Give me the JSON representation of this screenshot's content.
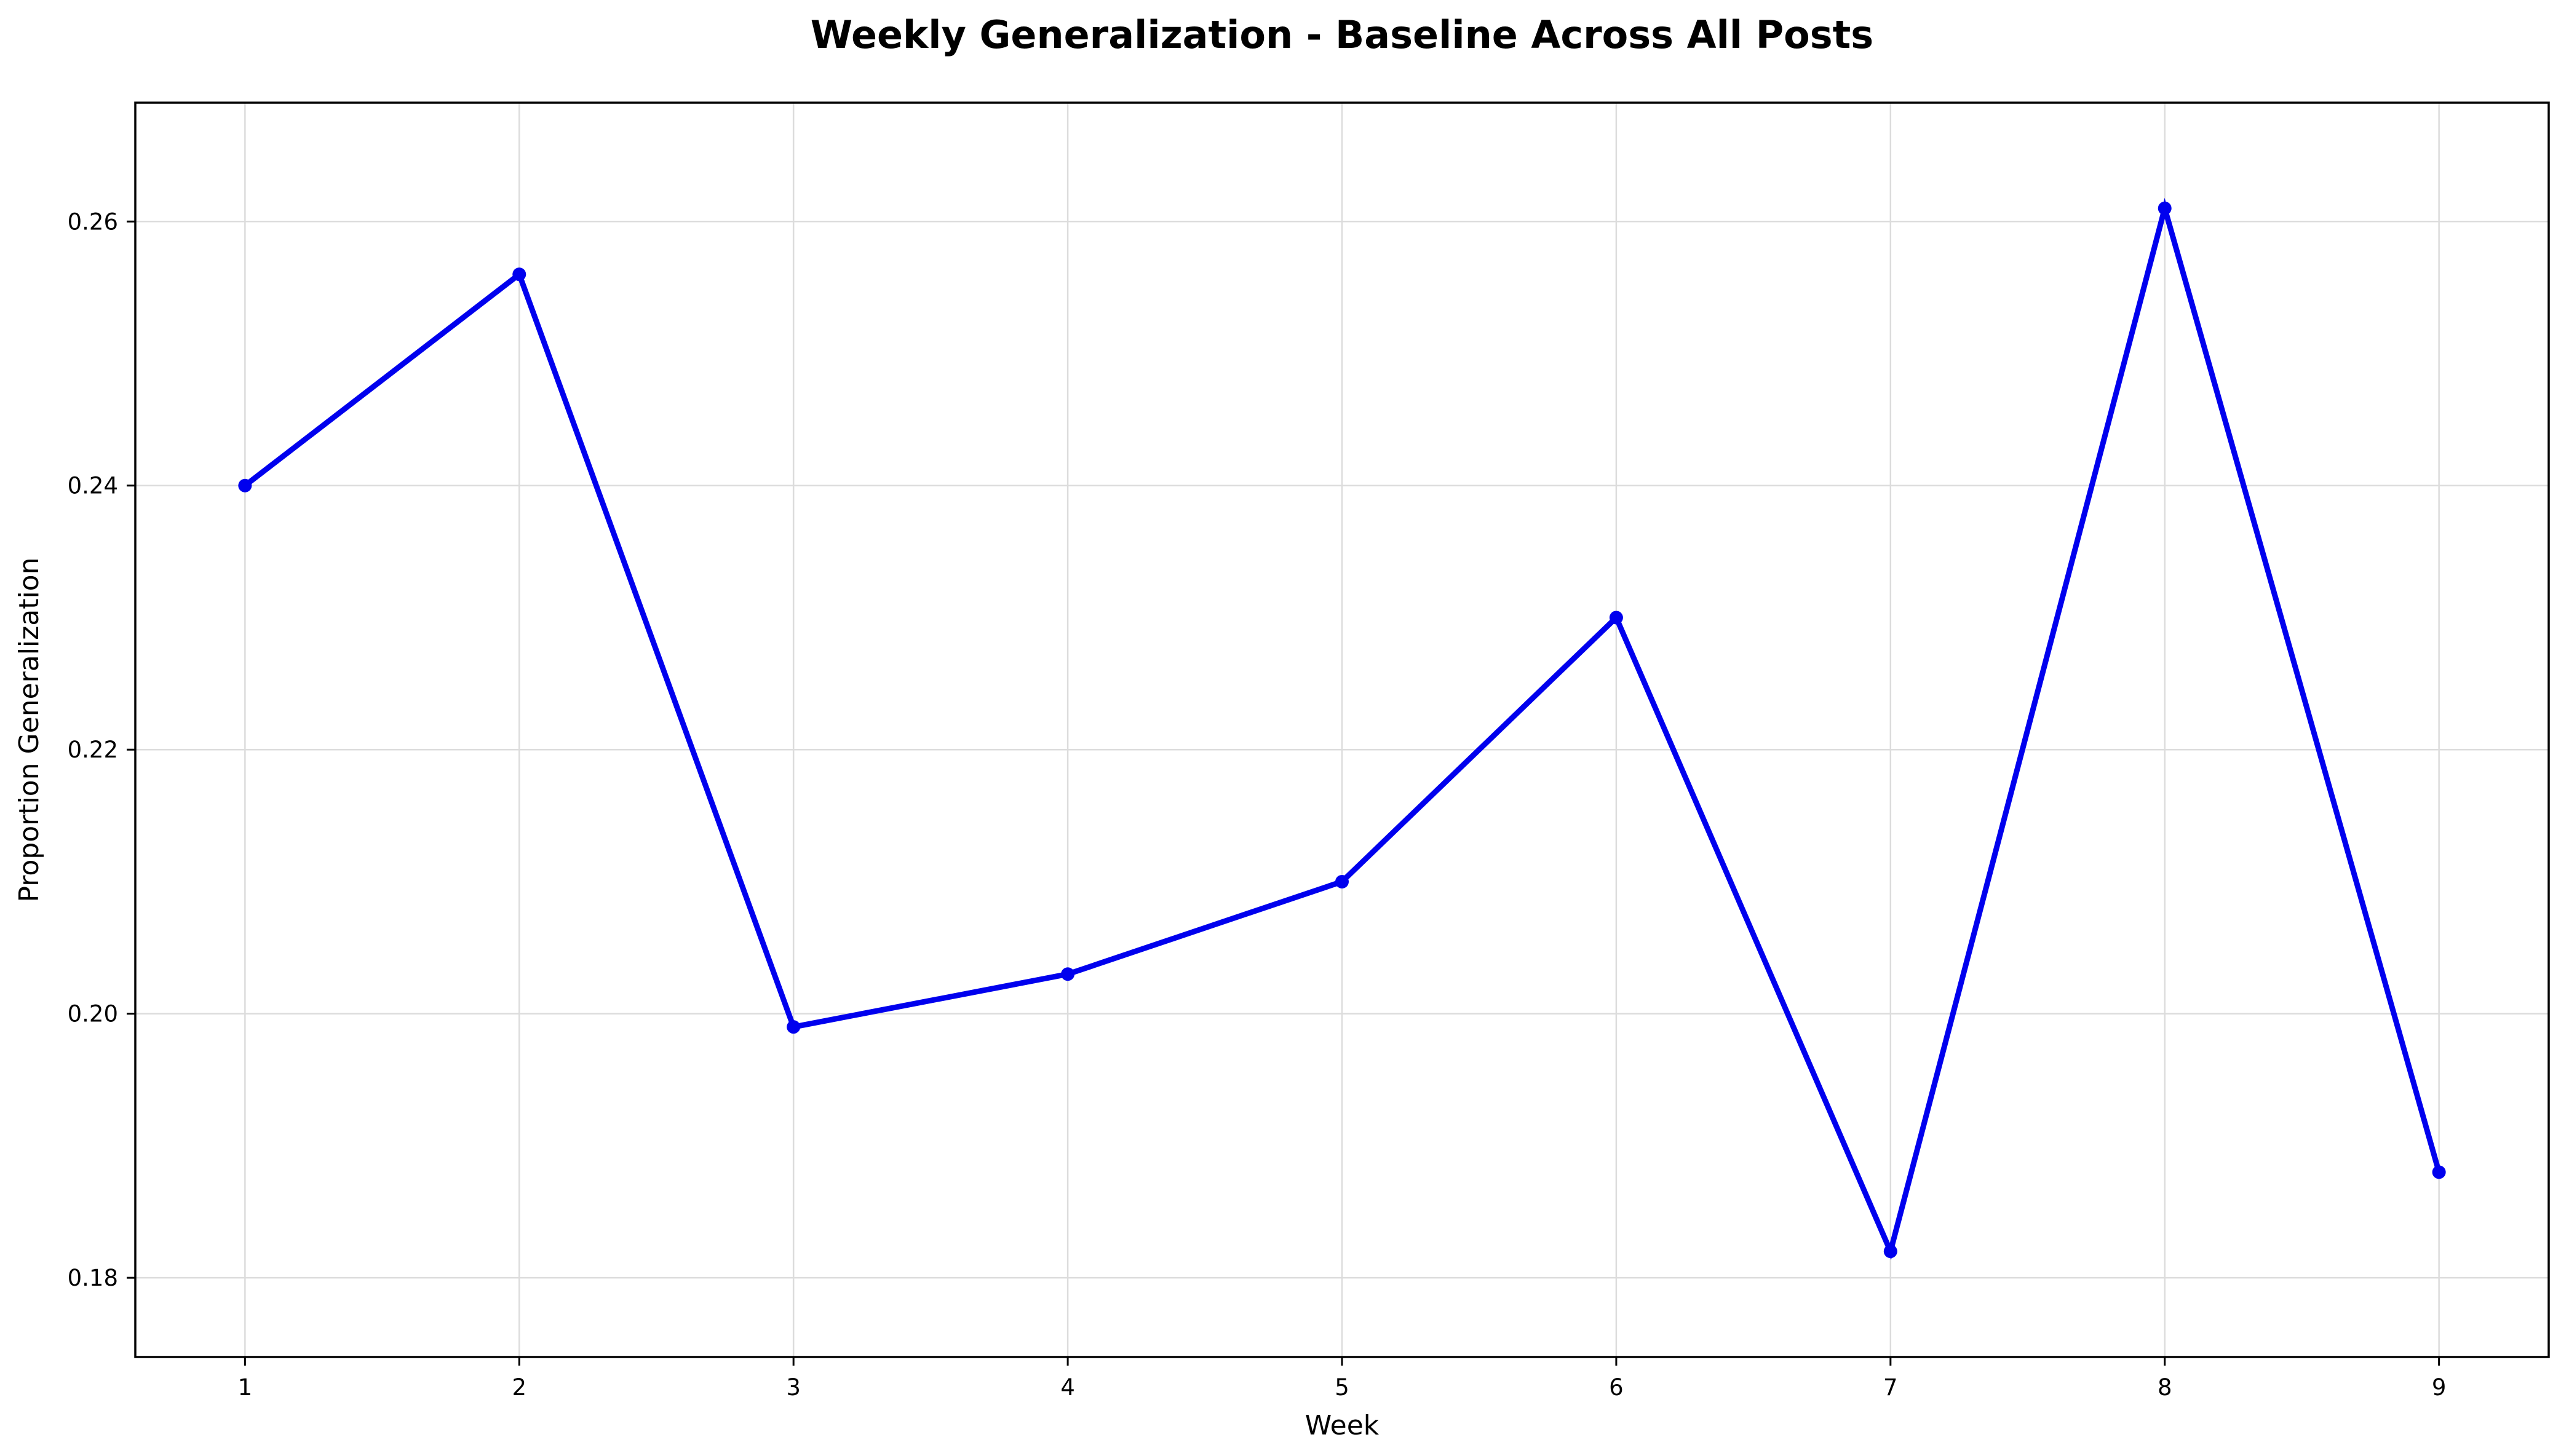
{
  "chart_data": {
    "type": "line",
    "title": "Weekly Generalization - Baseline Across All Posts",
    "xlabel": "Week",
    "ylabel": "Proportion Generalization",
    "x": [
      1,
      2,
      3,
      4,
      5,
      6,
      7,
      8,
      9
    ],
    "xticks": [
      "1",
      "2",
      "3",
      "4",
      "5",
      "6",
      "7",
      "8",
      "9"
    ],
    "xlim": [
      0.6,
      9.4
    ],
    "yticks": [
      "0.18",
      "0.20",
      "0.22",
      "0.24",
      "0.26"
    ],
    "ylim": [
      0.174,
      0.269
    ],
    "grid": true,
    "series": [
      {
        "color": "#0000ee",
        "values": [
          0.24,
          0.256,
          0.199,
          0.203,
          0.21,
          0.23,
          0.182,
          0.261,
          0.188
        ]
      }
    ]
  }
}
